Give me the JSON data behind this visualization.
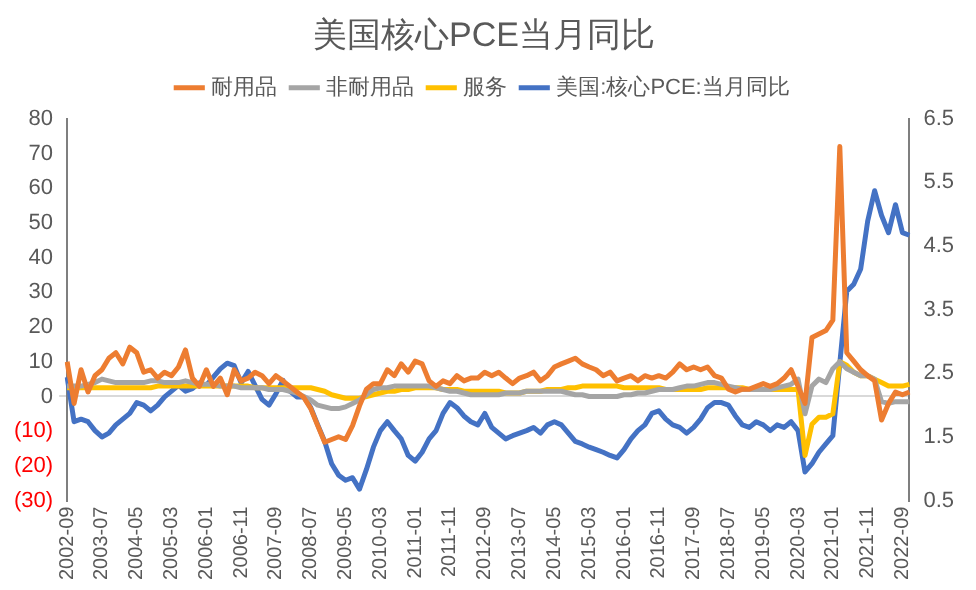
{
  "chart_data": {
    "type": "line",
    "title": "美国核心PCE当月同比",
    "categories": [
      "2002-09",
      null,
      null,
      null,
      null,
      "2003-07",
      null,
      null,
      null,
      null,
      "2004-05",
      null,
      null,
      null,
      null,
      "2005-03",
      null,
      null,
      null,
      null,
      "2006-01",
      null,
      null,
      null,
      null,
      "2006-11",
      null,
      null,
      null,
      null,
      "2007-09",
      null,
      null,
      null,
      null,
      "2008-07",
      null,
      null,
      null,
      null,
      "2009-05",
      null,
      null,
      null,
      null,
      "2010-03",
      null,
      null,
      null,
      null,
      "2011-01",
      null,
      null,
      null,
      null,
      "2011-11",
      null,
      null,
      null,
      null,
      "2012-09",
      null,
      null,
      null,
      null,
      "2013-07",
      null,
      null,
      null,
      null,
      "2014-05",
      null,
      null,
      null,
      null,
      "2015-03",
      null,
      null,
      null,
      null,
      "2016-01",
      null,
      null,
      null,
      null,
      "2016-11",
      null,
      null,
      null,
      null,
      "2017-09",
      null,
      null,
      null,
      null,
      "2018-07",
      null,
      null,
      null,
      null,
      "2019-05",
      null,
      null,
      null,
      null,
      "2020-03",
      null,
      null,
      null,
      null,
      "2021-01",
      null,
      null,
      null,
      null,
      "2021-11",
      null,
      null,
      null,
      null,
      "2022-09",
      null
    ],
    "series": [
      {
        "name": "耐用品",
        "color": "#ed7d31",
        "values": [
          10,
          -2,
          7.7,
          1.3,
          6,
          7.7,
          11,
          12.6,
          9.4,
          14.2,
          12.6,
          7,
          7.7,
          5.3,
          7,
          6,
          8.5,
          13.4,
          5.3,
          2.9,
          7.7,
          2.9,
          5.3,
          0.5,
          7.7,
          4.5,
          5.3,
          7,
          6,
          3.7,
          6,
          4.5,
          2.9,
          1.3,
          -0.3,
          -3.5,
          -8.4,
          -13.2,
          -12.4,
          -11.6,
          -12.4,
          -8.4,
          -2.7,
          2.1,
          3.7,
          3.7,
          7.7,
          6,
          9.4,
          7,
          10.2,
          9.4,
          4.5,
          2.9,
          4.5,
          3.7,
          6,
          4.5,
          5.3,
          5.3,
          7,
          6,
          7,
          5.3,
          3.7,
          5.3,
          6,
          7,
          4.5,
          6,
          8.5,
          9.4,
          10.2,
          11,
          9.4,
          8.5,
          7.7,
          6,
          7,
          4.5,
          5.3,
          6,
          4.5,
          6,
          5.3,
          6,
          5.3,
          7,
          9.4,
          7.7,
          8.5,
          7.7,
          8.5,
          6,
          5.3,
          2.1,
          1.3,
          2.1,
          2.1,
          2.9,
          3.7,
          2.9,
          3.7,
          5.3,
          7.7,
          2.9,
          -2,
          17,
          18,
          19,
          22,
          72,
          12.6,
          10.2,
          7.7,
          6,
          4.5,
          -6.8,
          -2,
          1.3,
          0.5,
          1.3
        ]
      },
      {
        "name": "非耐用品",
        "color": "#a5a5a5",
        "values": [
          3,
          3,
          3,
          3.5,
          4,
          5,
          4.5,
          4,
          4,
          4,
          4,
          4,
          4.5,
          4.5,
          4,
          4,
          4,
          4.5,
          4,
          3.5,
          3.5,
          3.5,
          3,
          3,
          3,
          2.5,
          2.5,
          2.5,
          2.5,
          2,
          2,
          2,
          1.5,
          1,
          0,
          -1,
          -2.5,
          -3,
          -3.5,
          -3.5,
          -3,
          -2,
          -1,
          0.5,
          2,
          2.5,
          2.5,
          3,
          3,
          3,
          3,
          3,
          3,
          2.5,
          2,
          1.5,
          1.5,
          1,
          0.5,
          0.5,
          0.5,
          0.5,
          0.5,
          1,
          1,
          1,
          1.5,
          1.5,
          1.5,
          1.5,
          1.5,
          1.5,
          1,
          0.5,
          0.5,
          0,
          0,
          0,
          0,
          0,
          0.5,
          0.5,
          1,
          1,
          1.5,
          2,
          2,
          2,
          2.5,
          3,
          3,
          3.5,
          4,
          4,
          3.5,
          3,
          2.5,
          2,
          2,
          2,
          2,
          2,
          2.5,
          3,
          3.5,
          5,
          -5,
          3,
          5,
          4,
          8,
          10,
          8,
          7,
          6,
          6,
          5,
          -1.5,
          -2,
          -1.5,
          -1.5,
          -1.5
        ]
      },
      {
        "name": "服务",
        "color": "#ffc000",
        "values": [
          2.5,
          2.5,
          2.5,
          2.5,
          2.5,
          2.5,
          2.5,
          2.5,
          2.5,
          2.5,
          2.5,
          2.5,
          2.5,
          3,
          3,
          3,
          3,
          3,
          3,
          3,
          3,
          3,
          3,
          3,
          3,
          3,
          3,
          2.5,
          2.5,
          2.5,
          2.5,
          2.5,
          2.5,
          2.5,
          2.5,
          2.5,
          2,
          1.5,
          0.5,
          0,
          -0.5,
          -0.5,
          -0.5,
          0,
          0.5,
          1,
          1.5,
          1.5,
          2,
          2,
          2.5,
          2.5,
          2.5,
          2.5,
          2,
          2,
          2,
          1.5,
          1.5,
          1.5,
          1.5,
          1.5,
          1.5,
          1,
          1,
          1,
          1.5,
          1.5,
          1.5,
          2,
          2,
          2,
          2.5,
          2.5,
          3,
          3,
          3,
          3,
          3,
          3,
          2.5,
          2.5,
          2.5,
          2.5,
          2.5,
          2.5,
          2,
          2,
          2,
          2,
          2,
          2,
          2.5,
          2.5,
          2.5,
          2.5,
          2.5,
          2.5,
          2,
          2,
          2,
          2,
          2,
          2,
          2,
          2,
          -17,
          -8,
          -6,
          -6,
          -5,
          10,
          9,
          7,
          6,
          6,
          5,
          4,
          3,
          3,
          3,
          3.5
        ]
      },
      {
        "name": "美国:核心PCE:当月同比",
        "color": "#4472c4",
        "axis": "y2",
        "values": [
          2.44,
          1.74,
          1.78,
          1.74,
          1.6,
          1.5,
          1.56,
          1.69,
          1.78,
          1.87,
          2.04,
          2.0,
          1.91,
          2.0,
          2.13,
          2.22,
          2.31,
          2.22,
          2.26,
          2.35,
          2.31,
          2.44,
          2.57,
          2.66,
          2.62,
          2.35,
          2.53,
          2.31,
          2.09,
          2.0,
          2.18,
          2.39,
          2.22,
          2.13,
          2.13,
          1.96,
          1.69,
          1.43,
          1.08,
          0.9,
          0.82,
          0.86,
          0.68,
          0.99,
          1.34,
          1.6,
          1.74,
          1.6,
          1.47,
          1.21,
          1.12,
          1.26,
          1.47,
          1.6,
          1.87,
          2.04,
          1.96,
          1.83,
          1.74,
          1.69,
          1.87,
          1.65,
          1.56,
          1.47,
          1.52,
          1.56,
          1.6,
          1.65,
          1.56,
          1.69,
          1.74,
          1.69,
          1.56,
          1.43,
          1.39,
          1.34,
          1.3,
          1.26,
          1.21,
          1.17,
          1.3,
          1.47,
          1.6,
          1.69,
          1.87,
          1.91,
          1.78,
          1.69,
          1.65,
          1.56,
          1.65,
          1.78,
          1.96,
          2.04,
          2.04,
          2.0,
          1.83,
          1.69,
          1.65,
          1.74,
          1.69,
          1.6,
          1.69,
          1.65,
          1.74,
          1.6,
          0.95,
          1.08,
          1.26,
          1.39,
          1.52,
          2.66,
          3.79,
          3.9,
          4.14,
          4.89,
          5.37,
          4.98,
          4.71,
          5.15,
          4.71,
          4.67
        ]
      }
    ],
    "ylim": [
      -30,
      80
    ],
    "yticks": [
      {
        "value": -30,
        "label": "(30)"
      },
      {
        "value": -20,
        "label": "(20)"
      },
      {
        "value": -10,
        "label": "(10)"
      },
      0,
      10,
      20,
      30,
      40,
      50,
      60,
      70,
      80
    ],
    "y2lim": [
      0.5,
      6.5
    ],
    "y2ticks": [
      0.5,
      1.5,
      2.5,
      3.5,
      4.5,
      5.5,
      6.5
    ],
    "legend": "top",
    "marker": "none",
    "line_style": "solid"
  }
}
